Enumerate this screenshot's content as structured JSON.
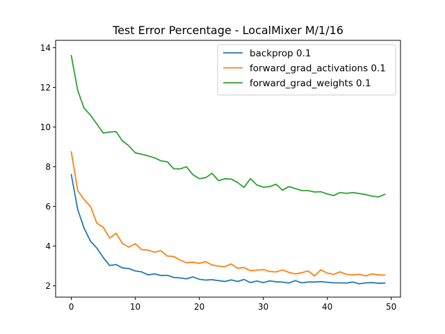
{
  "chart_data": {
    "type": "line",
    "title": "Test Error Percentage - LocalMixer M/1/16",
    "xlabel": "",
    "ylabel": "",
    "xlim": [
      -2.45,
      51.45
    ],
    "ylim": [
      1.43,
      14.37
    ],
    "xticks": [
      0,
      10,
      20,
      30,
      40,
      50
    ],
    "yticks": [
      2,
      4,
      6,
      8,
      10,
      12,
      14
    ],
    "grid": false,
    "legend_position": "upper right",
    "x": [
      0,
      1,
      2,
      3,
      4,
      5,
      6,
      7,
      8,
      9,
      10,
      11,
      12,
      13,
      14,
      15,
      16,
      17,
      18,
      19,
      20,
      21,
      22,
      23,
      24,
      25,
      26,
      27,
      28,
      29,
      30,
      31,
      32,
      33,
      34,
      35,
      36,
      37,
      38,
      39,
      40,
      41,
      42,
      43,
      44,
      45,
      46,
      47,
      48,
      49
    ],
    "series": [
      {
        "name": "backprop 0.1",
        "color": "#1f77b4",
        "values": [
          7.6,
          5.85,
          4.9,
          4.25,
          3.9,
          3.42,
          3.02,
          3.07,
          2.9,
          2.87,
          2.75,
          2.7,
          2.55,
          2.6,
          2.52,
          2.53,
          2.42,
          2.4,
          2.35,
          2.45,
          2.33,
          2.29,
          2.31,
          2.26,
          2.22,
          2.3,
          2.22,
          2.32,
          2.16,
          2.24,
          2.16,
          2.25,
          2.2,
          2.19,
          2.14,
          2.26,
          2.15,
          2.19,
          2.19,
          2.21,
          2.18,
          2.15,
          2.15,
          2.14,
          2.19,
          2.1,
          2.15,
          2.16,
          2.13,
          2.14
        ]
      },
      {
        "name": "forward_grad_activations 0.1",
        "color": "#ff7f0e",
        "values": [
          8.75,
          6.8,
          6.35,
          6.0,
          5.15,
          4.95,
          4.4,
          4.65,
          4.13,
          3.95,
          4.12,
          3.82,
          3.8,
          3.69,
          3.77,
          3.5,
          3.48,
          3.3,
          3.16,
          3.19,
          3.13,
          3.22,
          3.05,
          2.99,
          2.97,
          3.1,
          2.88,
          2.92,
          2.76,
          2.79,
          2.82,
          2.72,
          2.7,
          2.8,
          2.68,
          2.6,
          2.66,
          2.75,
          2.5,
          2.8,
          2.64,
          2.58,
          2.7,
          2.58,
          2.55,
          2.58,
          2.5,
          2.6,
          2.55,
          2.54
        ]
      },
      {
        "name": "forward_grad_weights 0.1",
        "color": "#2ca02c",
        "values": [
          13.6,
          11.85,
          10.95,
          10.6,
          10.15,
          9.7,
          9.75,
          9.77,
          9.3,
          9.05,
          8.7,
          8.63,
          8.55,
          8.45,
          8.3,
          8.25,
          7.9,
          7.89,
          8.0,
          7.6,
          7.4,
          7.45,
          7.67,
          7.3,
          7.39,
          7.38,
          7.2,
          6.96,
          7.4,
          7.08,
          6.97,
          7.0,
          7.12,
          6.82,
          7.0,
          6.9,
          6.8,
          6.8,
          6.73,
          6.74,
          6.63,
          6.55,
          6.7,
          6.66,
          6.7,
          6.65,
          6.6,
          6.52,
          6.48,
          6.61
        ]
      }
    ]
  }
}
